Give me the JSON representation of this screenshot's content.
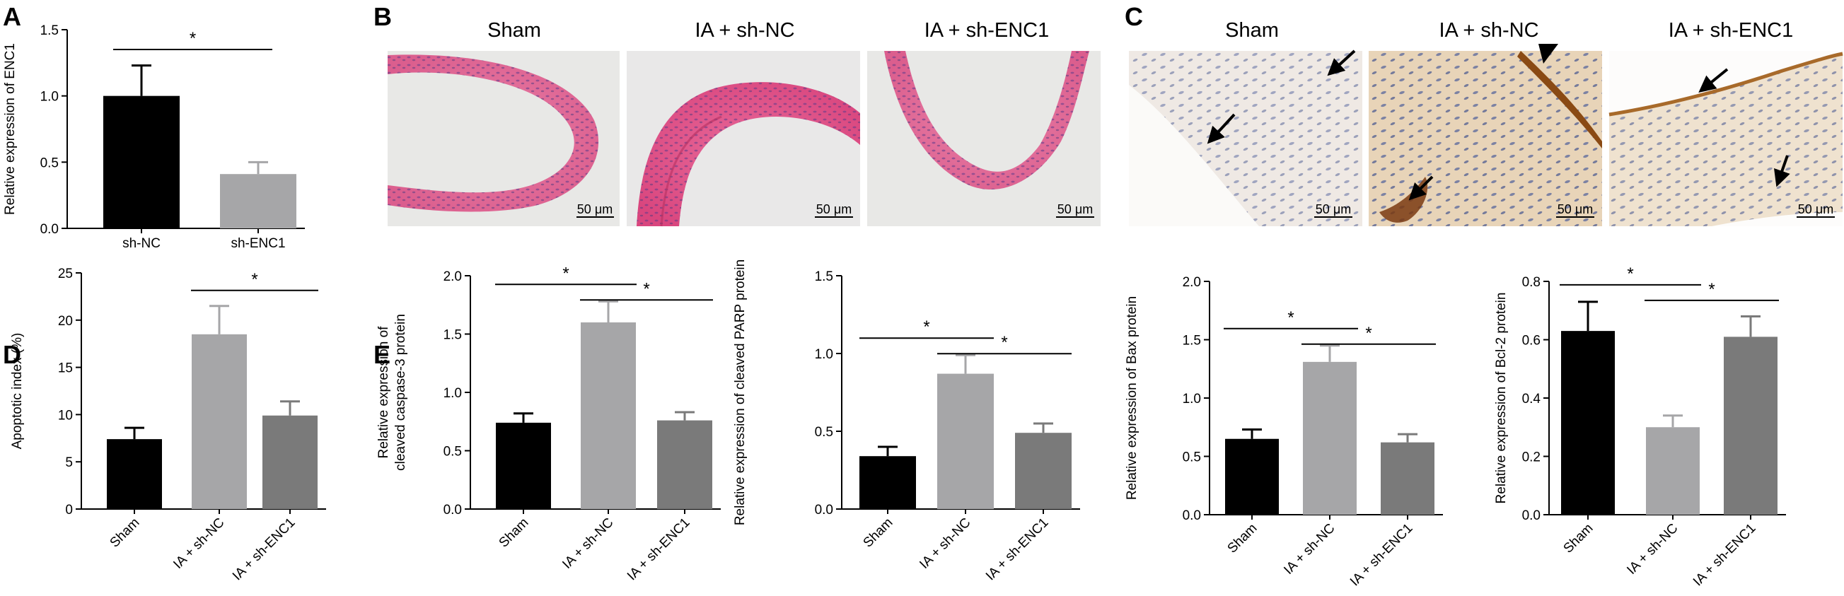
{
  "panel_labels": [
    "A",
    "B",
    "C",
    "D",
    "E"
  ],
  "colors": {
    "sham": "#000000",
    "sh_nc": "#a6a6a8",
    "sh_enc1": "#7a7a7a"
  },
  "micrographs": {
    "B": {
      "titles": [
        "Sham",
        "IA + sh-NC",
        "IA + sh-ENC1"
      ],
      "scale_bar": "50 μm",
      "stain": "H&E"
    },
    "C": {
      "titles": [
        "Sham",
        "IA + sh-NC",
        "IA + sh-ENC1"
      ],
      "scale_bar": "50 μm",
      "stain": "IHC"
    }
  },
  "chart_data": [
    {
      "panel": "A",
      "type": "bar",
      "categories": [
        "sh-NC",
        "sh-ENC1"
      ],
      "values": [
        1.0,
        0.41
      ],
      "errors": [
        0.23,
        0.09
      ],
      "ylabel": "Relative expression of ENC1",
      "ylim": [
        0,
        1.5
      ],
      "ticks": [
        "0.0",
        "0.5",
        "1.0",
        "1.5"
      ],
      "significance": [
        {
          "pair": [
            0,
            1
          ],
          "label": "*"
        }
      ]
    },
    {
      "panel": "D",
      "type": "bar",
      "categories": [
        "Sham",
        "IA + sh-NC",
        "IA + sh-ENC1"
      ],
      "values": [
        7.4,
        18.5,
        9.9
      ],
      "errors": [
        1.2,
        3.0,
        1.5
      ],
      "ylabel": "Apoptotic index (%)",
      "ylim": [
        0,
        25
      ],
      "ticks": [
        "0",
        "5",
        "10",
        "15",
        "20",
        "25"
      ],
      "significance": [
        {
          "pair": [
            1,
            2
          ],
          "label": "*"
        }
      ]
    },
    {
      "panel": "E",
      "type": "bar",
      "categories": [
        "Sham",
        "IA + sh-NC",
        "IA + sh-ENC1"
      ],
      "values": [
        0.74,
        1.6,
        0.76
      ],
      "errors": [
        0.08,
        0.18,
        0.07
      ],
      "ylabel": "Relative expression of cleaved caspase-3 protein",
      "ylabel_lines": [
        "Relative expression of",
        "cleaved caspase-3 protein"
      ],
      "ylim": [
        0,
        2.0
      ],
      "ticks": [
        "0.0",
        "0.5",
        "1.0",
        "1.5",
        "2.0"
      ],
      "significance": [
        {
          "pair": [
            0,
            1
          ],
          "label": "*"
        },
        {
          "pair": [
            1,
            2
          ],
          "label": "*"
        }
      ]
    },
    {
      "type": "bar",
      "categories": [
        "Sham",
        "IA + sh-NC",
        "IA + sh-ENC1"
      ],
      "values": [
        0.34,
        0.87,
        0.49
      ],
      "errors": [
        0.06,
        0.12,
        0.06
      ],
      "ylabel": "Relative expression of cleaved PARP protein",
      "ylim": [
        0,
        1.5
      ],
      "ticks": [
        "0.0",
        "0.5",
        "1.0",
        "1.5"
      ],
      "significance": [
        {
          "pair": [
            0,
            1
          ],
          "label": "*"
        },
        {
          "pair": [
            1,
            2
          ],
          "label": "*"
        }
      ]
    },
    {
      "type": "bar",
      "categories": [
        "Sham",
        "IA + sh-NC",
        "IA + sh-ENC1"
      ],
      "values": [
        0.65,
        1.31,
        0.62
      ],
      "errors": [
        0.08,
        0.14,
        0.07
      ],
      "ylabel": "Relative expression of Bax protein",
      "ylim": [
        0,
        2.0
      ],
      "ticks": [
        "0.0",
        "0.5",
        "1.0",
        "1.5",
        "2.0"
      ],
      "significance": [
        {
          "pair": [
            0,
            1
          ],
          "label": "*"
        },
        {
          "pair": [
            1,
            2
          ],
          "label": "*"
        }
      ]
    },
    {
      "type": "bar",
      "categories": [
        "Sham",
        "IA + sh-NC",
        "IA + sh-ENC1"
      ],
      "values": [
        0.63,
        0.3,
        0.61
      ],
      "errors": [
        0.1,
        0.04,
        0.07
      ],
      "ylabel": "Relative expression of Bcl-2 protein",
      "ylim": [
        0,
        0.8
      ],
      "ticks": [
        "0.0",
        "0.2",
        "0.4",
        "0.6",
        "0.8"
      ],
      "significance": [
        {
          "pair": [
            0,
            1
          ],
          "label": "*"
        },
        {
          "pair": [
            1,
            2
          ],
          "label": "*"
        }
      ]
    }
  ]
}
